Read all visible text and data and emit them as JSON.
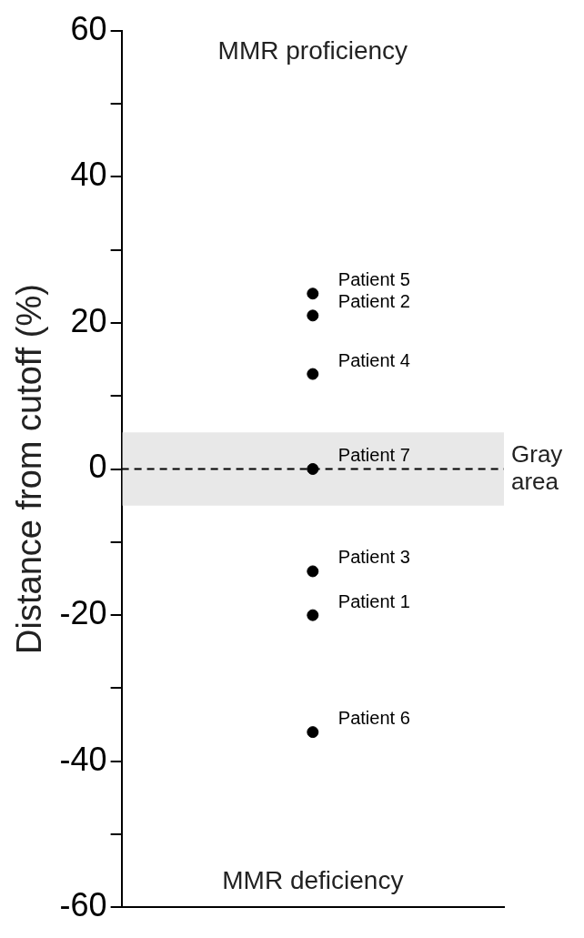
{
  "chart_data": {
    "type": "scatter",
    "ylabel": "Distance from cutoff (%)",
    "categories": [
      null
    ],
    "series": [
      {
        "name": "Patient 5",
        "color": "#000000",
        "values": [
          24
        ]
      },
      {
        "name": "Patient 2",
        "color": "#000000",
        "values": [
          21
        ]
      },
      {
        "name": "Patient 4",
        "color": "#000000",
        "values": [
          13
        ]
      },
      {
        "name": "Patient 7",
        "color": "#000000",
        "values": [
          0
        ]
      },
      {
        "name": "Patient 3",
        "color": "#000000",
        "values": [
          -14
        ]
      },
      {
        "name": "Patient 1",
        "color": "#000000",
        "values": [
          -20
        ]
      },
      {
        "name": "Patient 6",
        "color": "#000000",
        "values": [
          -36
        ]
      }
    ],
    "ylim": [
      -60,
      60
    ],
    "yticks": [
      -60,
      {
        "value": -50,
        "label": null
      },
      -40,
      {
        "value": -30,
        "label": null
      },
      -20,
      {
        "value": -10,
        "label": null
      },
      0,
      {
        "value": 10,
        "label": null
      },
      20,
      {
        "value": 30,
        "label": null
      },
      40,
      {
        "value": 50,
        "label": null
      },
      60
    ],
    "ref_lines": [
      {
        "axis": "y",
        "value": 0,
        "label": null,
        "line_style": "dashed",
        "color": "#000000"
      }
    ],
    "bands": [
      {
        "axis": "y",
        "from": -5,
        "to": 5,
        "label": "Gray area",
        "color": "#e8e8e8"
      }
    ],
    "annotations": [
      "MMR proficiency",
      "MMR deficiency"
    ],
    "marker": "circle",
    "legend": false,
    "grid": false
  }
}
